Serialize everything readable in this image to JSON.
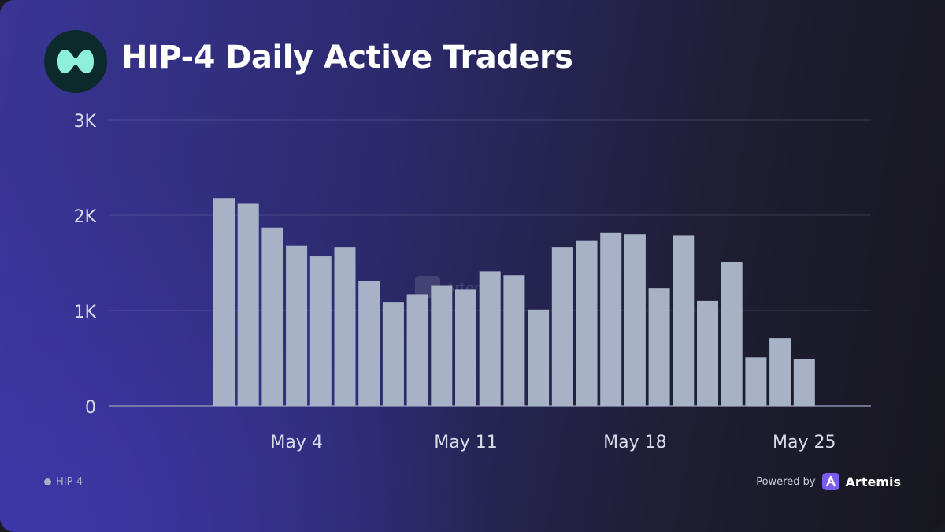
{
  "title": "HIP-4 Daily Active Traders",
  "legend": {
    "label": "HIP-4",
    "color": "#a7b2c6"
  },
  "footer": {
    "powered_by": "Powered by",
    "brand": "Artemis"
  },
  "watermark": "Artemis",
  "colors": {
    "bar": "#a7b2c6",
    "accent_logo": "#8ef0d8",
    "brand_purple": "#7c5cf0"
  },
  "chart_data": {
    "type": "bar",
    "x": [
      "May 1",
      "May 2",
      "May 3",
      "May 4",
      "May 5",
      "May 6",
      "May 7",
      "May 8",
      "May 9",
      "May 10",
      "May 11",
      "May 12",
      "May 13",
      "May 14",
      "May 15",
      "May 16",
      "May 17",
      "May 18",
      "May 19",
      "May 20",
      "May 21",
      "May 22",
      "May 23",
      "May 24",
      "May 25",
      "May 26"
    ],
    "series": [
      {
        "name": "HIP-4",
        "values": [
          2180,
          2120,
          1870,
          1680,
          1570,
          1660,
          1310,
          1090,
          1170,
          1260,
          1220,
          1410,
          1370,
          1010,
          1660,
          1730,
          1820,
          1800,
          1230,
          1790,
          1100,
          1510,
          510,
          710,
          490,
          null
        ]
      }
    ],
    "x_tick_labels": [
      "May 4",
      "May 11",
      "May 18",
      "May 25"
    ],
    "y_tick_labels": [
      "0",
      "1K",
      "2K",
      "3K"
    ],
    "ylim": [
      0,
      3000
    ],
    "grid": true,
    "legend_position": "bottom-left"
  }
}
